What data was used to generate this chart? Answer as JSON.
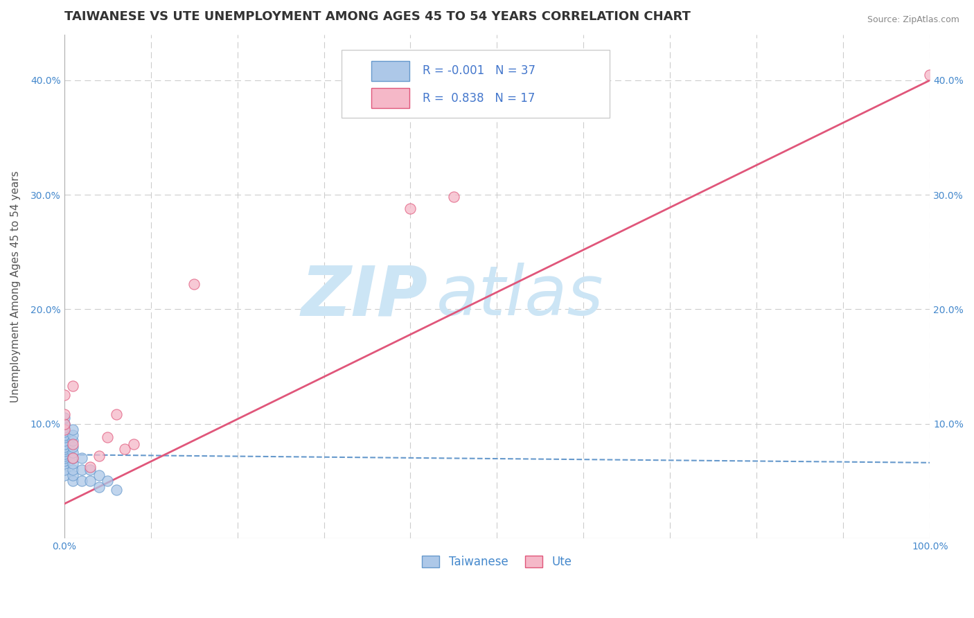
{
  "title": "TAIWANESE VS UTE UNEMPLOYMENT AMONG AGES 45 TO 54 YEARS CORRELATION CHART",
  "source": "Source: ZipAtlas.com",
  "ylabel": "Unemployment Among Ages 45 to 54 years",
  "watermark_zip": "ZIP",
  "watermark_atlas": "atlas",
  "taiwanese_scatter_x": [
    0.0,
    0.0,
    0.0,
    0.0,
    0.0,
    0.0,
    0.0,
    0.0,
    0.0,
    0.0,
    0.0,
    0.0,
    0.0,
    0.0,
    0.0,
    0.0,
    0.0,
    0.0,
    0.01,
    0.01,
    0.01,
    0.01,
    0.01,
    0.01,
    0.01,
    0.01,
    0.01,
    0.01,
    0.02,
    0.02,
    0.02,
    0.03,
    0.03,
    0.04,
    0.04,
    0.05,
    0.06
  ],
  "taiwanese_scatter_y": [
    0.055,
    0.06,
    0.065,
    0.068,
    0.07,
    0.072,
    0.074,
    0.076,
    0.078,
    0.08,
    0.082,
    0.085,
    0.088,
    0.09,
    0.093,
    0.097,
    0.1,
    0.105,
    0.05,
    0.055,
    0.06,
    0.065,
    0.07,
    0.075,
    0.08,
    0.085,
    0.09,
    0.095,
    0.05,
    0.06,
    0.07,
    0.05,
    0.06,
    0.045,
    0.055,
    0.05,
    0.042
  ],
  "ute_scatter_x": [
    0.0,
    0.0,
    0.0,
    0.0,
    0.01,
    0.01,
    0.01,
    0.03,
    0.04,
    0.05,
    0.06,
    0.07,
    0.08,
    0.15,
    0.4,
    0.45,
    1.0
  ],
  "ute_scatter_y": [
    0.095,
    0.1,
    0.108,
    0.125,
    0.07,
    0.082,
    0.133,
    0.062,
    0.072,
    0.088,
    0.108,
    0.078,
    0.082,
    0.222,
    0.288,
    0.298,
    0.405
  ],
  "taiwanese_R": -0.001,
  "taiwanese_N": 37,
  "ute_R": 0.838,
  "ute_N": 17,
  "taiwanese_line_x": [
    0.0,
    1.0
  ],
  "taiwanese_line_y": [
    0.073,
    0.066
  ],
  "ute_line_x": [
    0.0,
    1.0
  ],
  "ute_line_y": [
    0.03,
    0.4
  ],
  "xlim": [
    0.0,
    1.0
  ],
  "ylim": [
    0.0,
    0.44
  ],
  "x_ticks": [
    0.0,
    0.1,
    0.2,
    0.3,
    0.4,
    0.5,
    0.6,
    0.7,
    0.8,
    0.9,
    1.0
  ],
  "y_ticks": [
    0.0,
    0.1,
    0.2,
    0.3,
    0.4
  ],
  "grid_color": "#cccccc",
  "taiwanese_color": "#adc8e8",
  "ute_color": "#f5b8c8",
  "taiwanese_line_color": "#6699cc",
  "ute_line_color": "#e0567a",
  "watermark_color": "#cce5f5",
  "background_color": "#ffffff",
  "title_color": "#333333",
  "axis_label_color": "#555555",
  "tick_label_color": "#4488cc",
  "legend_R_color": "#4477cc",
  "legend_label_taiwanese": "Taiwanese",
  "legend_label_ute": "Ute",
  "title_fontsize": 13,
  "axis_label_fontsize": 11,
  "tick_fontsize": 10,
  "legend_fontsize": 12
}
